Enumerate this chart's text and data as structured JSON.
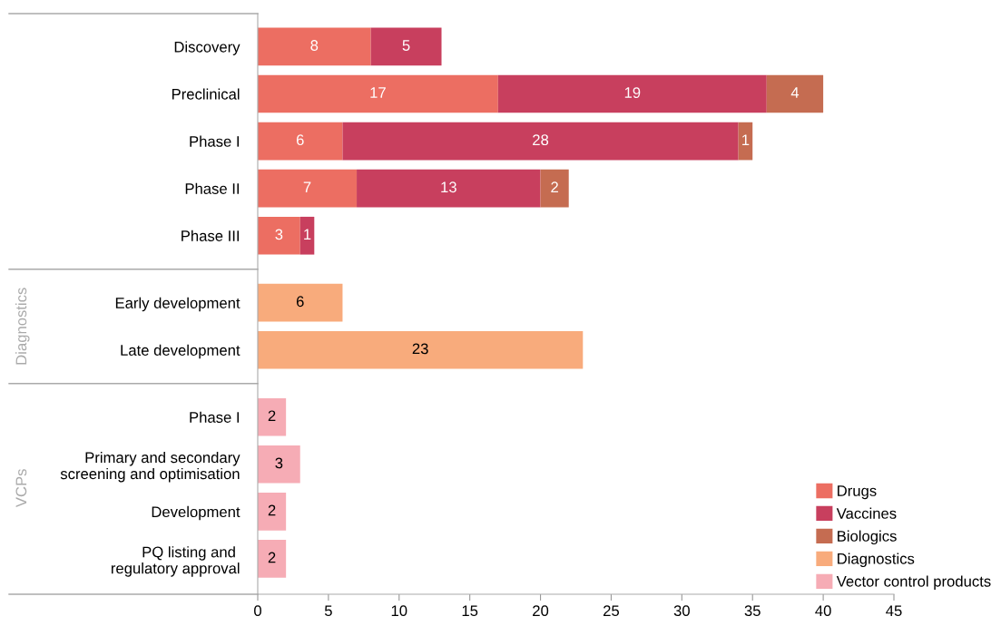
{
  "chart_data": {
    "type": "bar",
    "orientation": "horizontal",
    "stacked": true,
    "data_labels": true,
    "grid": false,
    "legend": "bottom right",
    "categories": [
      "Discovery",
      "Preclinical",
      "Phase I",
      "Phase II",
      "Phase III",
      "Early development",
      "Late development",
      "Phase I",
      "Primary and secondary\nscreening and optimisation",
      "Development",
      "PQ listing and \nregulatory approval"
    ],
    "series": [
      {
        "name": "Drugs",
        "color": "#ec6e62",
        "values": [
          8,
          17,
          6,
          7,
          3,
          null,
          null,
          null,
          null,
          null,
          null
        ]
      },
      {
        "name": "Vaccines",
        "color": "#c83f5e",
        "values": [
          5,
          19,
          28,
          13,
          1,
          null,
          null,
          null,
          null,
          null,
          null
        ]
      },
      {
        "name": "Biologics",
        "color": "#c56c51",
        "values": [
          null,
          4,
          1,
          2,
          null,
          null,
          null,
          null,
          null,
          null,
          null
        ]
      },
      {
        "name": "Diagnostics",
        "color": "#f8ab7c",
        "values": [
          null,
          null,
          null,
          null,
          null,
          6,
          23,
          null,
          null,
          null,
          null
        ]
      },
      {
        "name": "Vector control products",
        "color": "#f6acb5",
        "values": [
          null,
          null,
          null,
          null,
          null,
          null,
          null,
          2,
          3,
          2,
          2
        ]
      }
    ],
    "xlim": [
      0,
      45
    ],
    "xticks": [
      0,
      5,
      10,
      15,
      20,
      25,
      30,
      35,
      40,
      45
    ],
    "annotations": [
      "Diagnostics",
      "VCPs"
    ]
  }
}
